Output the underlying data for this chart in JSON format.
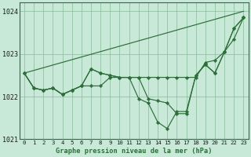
{
  "background_color": "#c8e8d8",
  "plot_bg_color": "#c8e8d8",
  "grid_color": "#88bb99",
  "line_color": "#2d6e3a",
  "marker_color": "#2d6e3a",
  "title": "Graphe pression niveau de la mer (hPa)",
  "xlim": [
    -0.5,
    23.5
  ],
  "ylim": [
    1021.0,
    1024.2
  ],
  "yticks": [
    1021,
    1022,
    1023,
    1024
  ],
  "xticks": [
    0,
    1,
    2,
    3,
    4,
    5,
    6,
    7,
    8,
    9,
    10,
    11,
    12,
    13,
    14,
    15,
    16,
    17,
    18,
    19,
    20,
    21,
    22,
    23
  ],
  "series": [
    {
      "x": [
        0,
        1,
        2,
        3,
        4,
        5,
        6,
        7,
        8,
        9,
        10,
        11,
        12,
        13,
        14,
        15,
        16,
        17,
        18,
        19,
        20,
        21,
        22,
        23
      ],
      "y": [
        1022.55,
        1022.2,
        1022.15,
        1022.2,
        1022.05,
        1022.15,
        1022.25,
        1022.25,
        1022.25,
        1022.45,
        1022.45,
        1022.45,
        1022.45,
        1022.45,
        1022.45,
        1022.45,
        1022.45,
        1022.45,
        1022.45,
        1022.8,
        1022.85,
        1023.05,
        1023.35,
        1023.85
      ],
      "has_markers": true
    },
    {
      "x": [
        0,
        1,
        2,
        3,
        4,
        5,
        6,
        7,
        8,
        9,
        10,
        11,
        12,
        13,
        14,
        15,
        16,
        17,
        18,
        19,
        20,
        21,
        22,
        23
      ],
      "y": [
        1022.55,
        1022.2,
        1022.15,
        1022.2,
        1022.05,
        1022.15,
        1022.25,
        1022.65,
        1022.55,
        1022.5,
        1022.45,
        1022.45,
        1022.45,
        1021.95,
        1021.9,
        1021.85,
        1021.6,
        1021.6,
        1022.5,
        1022.75,
        1022.55,
        1023.05,
        1023.6,
        1023.85
      ],
      "has_markers": true
    },
    {
      "x": [
        0,
        1,
        2,
        3,
        4,
        5,
        6,
        7,
        8,
        9,
        10,
        11,
        12,
        13,
        14,
        15,
        16,
        17,
        18,
        19,
        20,
        21,
        22,
        23
      ],
      "y": [
        1022.55,
        1022.2,
        1022.15,
        1022.2,
        1022.05,
        1022.15,
        1022.25,
        1022.65,
        1022.55,
        1022.5,
        1022.45,
        1022.45,
        1021.95,
        1021.85,
        1021.4,
        1021.25,
        1021.65,
        1021.65,
        1022.5,
        1022.75,
        1022.55,
        1023.05,
        1023.6,
        1023.85
      ],
      "has_markers": true
    },
    {
      "x": [
        0,
        23
      ],
      "y": [
        1022.55,
        1024.0
      ],
      "has_markers": false
    }
  ]
}
